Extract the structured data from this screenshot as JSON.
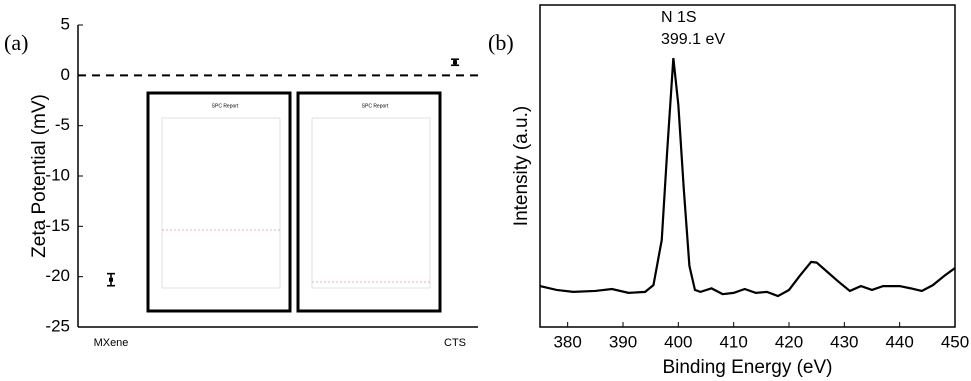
{
  "chart_data": [
    {
      "type": "errorbar",
      "panel_label": "(a)",
      "y_label": "Zeta Potential (mV)",
      "categories": [
        "MXene",
        "CTS"
      ],
      "values": [
        -20.3,
        1.3
      ],
      "errors": [
        0.6,
        0.3
      ],
      "color": "#000000",
      "ylim": [
        -25,
        5
      ],
      "yticks": [
        -25,
        -20,
        -15,
        -10,
        -5,
        0,
        5
      ],
      "reference_line": 0,
      "insets": [
        {
          "title": "SPC Report"
        },
        {
          "title": "SPC Report"
        }
      ]
    },
    {
      "type": "line",
      "panel_label": "(b)",
      "x_label": "Binding Energy (eV)",
      "y_label": "Intensity (a.u.)",
      "annotation": [
        "N 1S",
        "399.1 eV"
      ],
      "color": "#000000",
      "x": [
        375,
        378,
        381,
        385,
        388,
        391,
        394,
        395.5,
        397,
        398,
        399.1,
        400,
        401,
        402,
        403,
        404,
        406,
        408,
        410,
        412,
        414,
        416,
        418,
        420,
        422,
        424,
        425,
        427,
        429,
        431,
        433,
        435,
        437,
        440,
        442,
        444,
        446,
        448,
        450
      ],
      "values": [
        12.7,
        11.5,
        10.9,
        11.2,
        11.8,
        10.6,
        10.9,
        13,
        27,
        55,
        83.5,
        69,
        42.5,
        19,
        11.5,
        10.9,
        12,
        10.2,
        10.6,
        11.8,
        10.6,
        10.9,
        9.6,
        11.5,
        16,
        20.2,
        20,
        17,
        14,
        11.2,
        12.7,
        11.5,
        12.7,
        12.7,
        12,
        11.2,
        13,
        15.8,
        18.3
      ],
      "xlim": [
        375,
        450
      ],
      "xticks": [
        380,
        390,
        400,
        410,
        420,
        430,
        440,
        450
      ],
      "ylim": [
        0,
        100
      ]
    }
  ]
}
